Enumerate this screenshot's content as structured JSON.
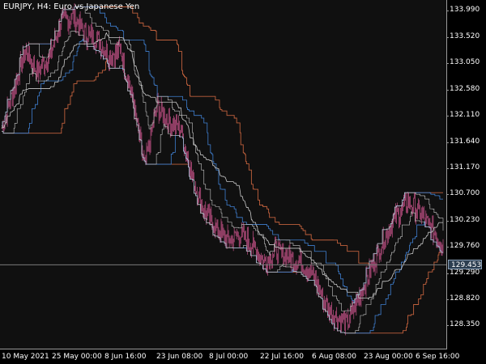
{
  "title": "EURJPY, H4:  Euro vs Japanese Yen",
  "price_axis": {
    "labels": [
      "133.990",
      "133.520",
      "133.050",
      "132.580",
      "132.110",
      "131.640",
      "131.170",
      "130.700",
      "130.230",
      "129.760",
      "129.290",
      "128.820",
      "128.350"
    ],
    "min": 127.95,
    "max": 134.2
  },
  "current_price": "129.453",
  "time_axis": {
    "labels": [
      "10 May 2021",
      "25 May 00:00",
      "8 Jun 16:00",
      "23 Jun 08:00",
      "8 Jul 00:00",
      "22 Jul 16:00",
      "6 Aug 08:00",
      "23 Aug 00:00",
      "6 Sep 16:00"
    ]
  },
  "colors": {
    "background": "#101010",
    "candles": "#c8538a",
    "outer_channel": "#c0603c",
    "inner_channel": "#3f7fd0",
    "mid_line": "#c8c8c8",
    "current_line": "#7a7a7a"
  },
  "chart_data": {
    "type": "line",
    "title": "EURJPY, H4:  Euro vs Japanese Yen",
    "ylim": [
      127.95,
      134.2
    ],
    "x_ticks": [
      "10 May 2021",
      "25 May 00:00",
      "8 Jun 16:00",
      "23 Jun 08:00",
      "8 Jul 00:00",
      "22 Jul 16:00",
      "6 Aug 08:00",
      "23 Aug 00:00",
      "6 Sep 16:00"
    ],
    "series": [
      {
        "values": [
          131.9,
          132.6,
          133.3,
          132.9,
          133.2,
          133.8,
          133.9,
          133.6,
          133.5,
          133.2,
          133.3,
          132.4,
          131.2,
          132.3,
          132.0,
          131.9,
          131.0,
          130.4,
          130.1,
          129.9,
          130.0,
          129.8,
          129.5,
          129.7,
          129.6,
          129.5,
          129.3,
          128.8,
          128.5,
          128.4,
          128.9,
          129.4,
          129.9,
          130.3,
          130.6,
          130.4,
          130.1,
          129.8
        ]
      }
    ]
  }
}
